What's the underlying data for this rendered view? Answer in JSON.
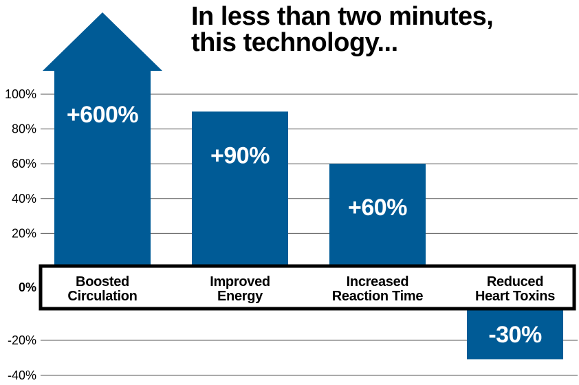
{
  "chart_data": {
    "type": "bar",
    "title": [
      "In less than two minutes,",
      "this technology..."
    ],
    "categories": [
      [
        "Boosted",
        "Circulation"
      ],
      [
        "Improved",
        "Energy"
      ],
      [
        "Increased",
        "Reaction Time"
      ],
      [
        "Reduced",
        "Heart Toxins"
      ]
    ],
    "values": [
      600,
      90,
      60,
      -30
    ],
    "data_labels": [
      "+600%",
      "+90%",
      "+60%",
      "-30%"
    ],
    "y_ticks": [
      100,
      80,
      60,
      40,
      20,
      0,
      -20,
      -40
    ],
    "y_tick_labels": [
      "100%",
      "80%",
      "60%",
      "40%",
      "20%",
      "0%",
      "-20%",
      "-40%"
    ],
    "ylim": [
      -40,
      100
    ],
    "overflow_arrow": true,
    "grid": true,
    "colors": {
      "bar": "#005b96",
      "grid": "#555555",
      "axis_box": "#000000"
    }
  }
}
